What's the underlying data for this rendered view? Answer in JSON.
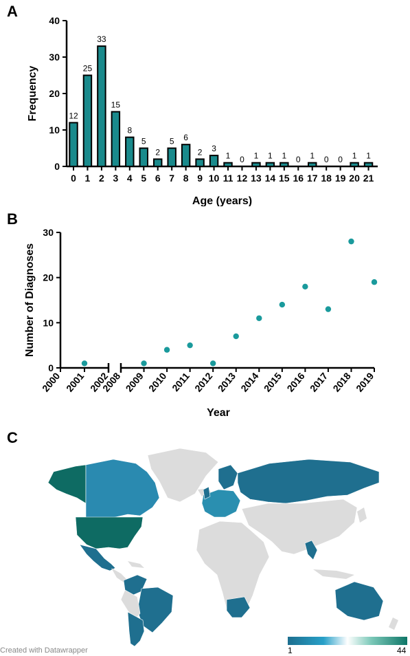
{
  "panels": {
    "a": "A",
    "b": "B",
    "c": "C"
  },
  "chart_data": [
    {
      "type": "bar",
      "xlabel": "Age (years)",
      "ylabel": "Frequency",
      "ylim": [
        0,
        40
      ],
      "yticks": [
        0,
        10,
        20,
        30,
        40
      ],
      "categories": [
        "0",
        "1",
        "2",
        "3",
        "4",
        "5",
        "6",
        "7",
        "8",
        "9",
        "10",
        "11",
        "12",
        "13",
        "14",
        "15",
        "16",
        "17",
        "18",
        "19",
        "20",
        "21"
      ],
      "values": [
        12,
        25,
        33,
        15,
        8,
        5,
        2,
        5,
        6,
        2,
        3,
        1,
        0,
        1,
        1,
        1,
        0,
        1,
        0,
        0,
        1,
        1
      ],
      "color": "#1a8a8c"
    },
    {
      "type": "scatter",
      "xlabel": "Year",
      "ylabel": "Number of Diagnoses",
      "ylim": [
        0,
        30
      ],
      "yticks": [
        0,
        10,
        20,
        30
      ],
      "x_segment_1": [
        2000,
        2001,
        2002
      ],
      "x_segment_2": [
        2008,
        2009,
        2010,
        2011,
        2012,
        2013,
        2014,
        2015,
        2016,
        2017,
        2018,
        2019
      ],
      "points": [
        {
          "x": 2001,
          "y": 1
        },
        {
          "x": 2009,
          "y": 1
        },
        {
          "x": 2010,
          "y": 4
        },
        {
          "x": 2011,
          "y": 5
        },
        {
          "x": 2012,
          "y": 1
        },
        {
          "x": 2013,
          "y": 7
        },
        {
          "x": 2014,
          "y": 11
        },
        {
          "x": 2015,
          "y": 14
        },
        {
          "x": 2016,
          "y": 18
        },
        {
          "x": 2017,
          "y": 13
        },
        {
          "x": 2018,
          "y": 28
        },
        {
          "x": 2019,
          "y": 19
        }
      ],
      "axis_break": true,
      "color": "#1a9a9c"
    },
    {
      "type": "choropleth-map",
      "legend": {
        "min": "1",
        "max": "44"
      },
      "credit": "Created with Datawrapper",
      "colors": {
        "high": "#0e6b63",
        "mid": "#1f6f8f",
        "low": "#2a8fb0",
        "none": "#dcdcdc"
      }
    }
  ]
}
